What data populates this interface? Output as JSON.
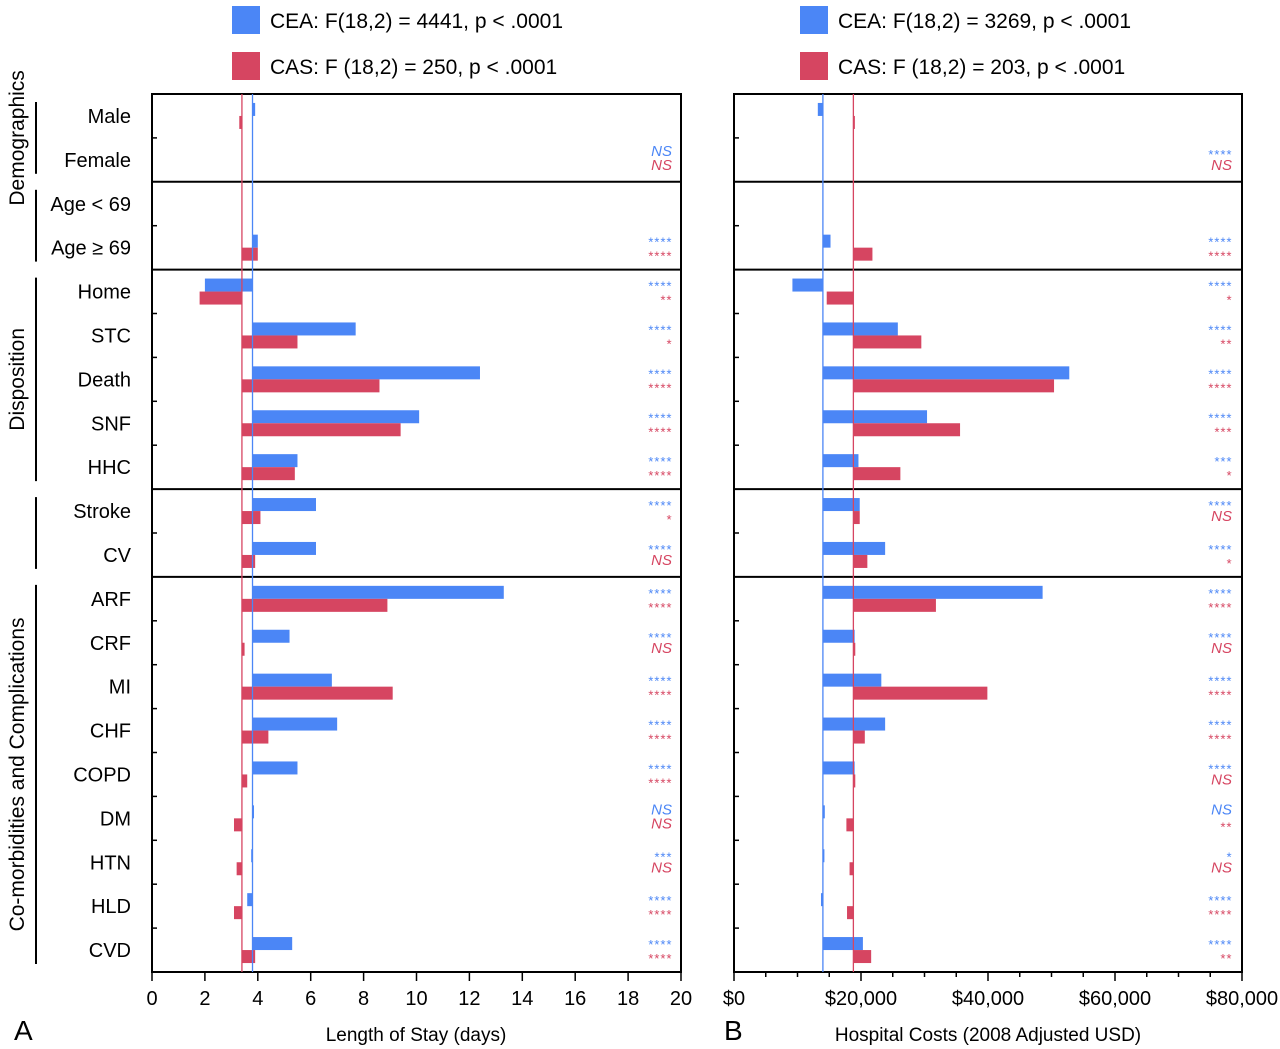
{
  "chart_data": [
    {
      "type": "bar",
      "orientation": "horizontal",
      "panel_label": "A",
      "xlabel": "Length of Stay (days)",
      "xlim": [
        0,
        20
      ],
      "xticks": [
        "0",
        "2",
        "4",
        "6",
        "8",
        "10",
        "12",
        "14",
        "16",
        "18",
        "20"
      ],
      "reference_lines": [
        {
          "series": "CEA",
          "x": 3.8
        },
        {
          "series": "CAS",
          "x": 3.4
        }
      ],
      "legend_position": "top",
      "groups": [
        {
          "label": "Demographics",
          "categories": [
            "Male",
            "Female"
          ]
        },
        {
          "label": "",
          "categories": [
            "Age < 69",
            "Age ≥ 69"
          ]
        },
        {
          "label": "Disposition",
          "categories": [
            "Home",
            "STC",
            "Death",
            "SNF",
            "HHC"
          ]
        },
        {
          "label": "",
          "categories": [
            "Stroke",
            "CV"
          ]
        },
        {
          "label": "Co-morbidities and Complications",
          "categories": [
            "ARF",
            "CRF",
            "MI",
            "CHF",
            "COPD",
            "DM",
            "HTN",
            "HLD",
            "CVD"
          ]
        }
      ],
      "categories": [
        "Male",
        "Female",
        "Age < 69",
        "Age ≥ 69",
        "Home",
        "STC",
        "Death",
        "SNF",
        "HHC",
        "Stroke",
        "CV",
        "ARF",
        "CRF",
        "MI",
        "CHF",
        "COPD",
        "DM",
        "HTN",
        "HLD",
        "CVD"
      ],
      "series": [
        {
          "name": "CEA",
          "legend": "CEA: F(18,2) = 4441, p < .0001",
          "color": "#4b86f6",
          "values": [
            3.9,
            null,
            null,
            4.0,
            2.0,
            7.7,
            12.4,
            10.1,
            5.5,
            6.2,
            6.2,
            13.3,
            5.2,
            6.8,
            7.0,
            5.5,
            3.85,
            3.75,
            3.6,
            5.3
          ],
          "significance": [
            "",
            "NS",
            "",
            "****",
            "****",
            "****",
            "****",
            "****",
            "****",
            "****",
            "****",
            "****",
            "****",
            "****",
            "****",
            "****",
            "NS",
            "***",
            "****",
            "****"
          ]
        },
        {
          "name": "CAS",
          "legend": "CAS: F (18,2) = 250, p < .0001",
          "color": "#d64561",
          "values": [
            3.3,
            null,
            null,
            4.0,
            1.8,
            5.5,
            8.6,
            9.4,
            5.4,
            4.1,
            3.9,
            8.9,
            3.5,
            9.1,
            4.4,
            3.6,
            3.1,
            3.2,
            3.1,
            3.9
          ],
          "significance": [
            "",
            "NS",
            "",
            "****",
            "**",
            "*",
            "****",
            "****",
            "****",
            "*",
            "NS",
            "****",
            "NS",
            "****",
            "****",
            "****",
            "NS",
            "NS",
            "****",
            "****"
          ]
        }
      ]
    },
    {
      "type": "bar",
      "orientation": "horizontal",
      "panel_label": "B",
      "xlabel": "Hospital Costs (2008 Adjusted USD)",
      "xlim": [
        0,
        80000
      ],
      "xticks": [
        "$0",
        "$20,000",
        "$40,000",
        "$60,000",
        "$80,000"
      ],
      "reference_lines": [
        {
          "series": "CEA",
          "x": 14000
        },
        {
          "series": "CAS",
          "x": 18800
        }
      ],
      "legend_position": "top",
      "categories": [
        "Male",
        "Female",
        "Age < 69",
        "Age ≥ 69",
        "Home",
        "STC",
        "Death",
        "SNF",
        "HHC",
        "Stroke",
        "CV",
        "ARF",
        "CRF",
        "MI",
        "CHF",
        "COPD",
        "DM",
        "HTN",
        "HLD",
        "CVD"
      ],
      "series": [
        {
          "name": "CEA",
          "legend": "CEA: F(18,2) = 3269, p < .0001",
          "color": "#4b86f6",
          "values": [
            13200,
            null,
            null,
            15200,
            9200,
            25800,
            52800,
            30400,
            19600,
            19800,
            23800,
            48600,
            19000,
            23200,
            23800,
            19000,
            14300,
            14100,
            13700,
            20300
          ],
          "significance": [
            "",
            "****",
            "",
            "****",
            "****",
            "****",
            "****",
            "****",
            "***",
            "****",
            "****",
            "****",
            "****",
            "****",
            "****",
            "****",
            "NS",
            "*",
            "****",
            "****"
          ]
        },
        {
          "name": "CAS",
          "legend": "CAS: F (18,2) = 203, p < .0001",
          "color": "#d64561",
          "values": [
            19000,
            null,
            null,
            21800,
            14600,
            29500,
            50400,
            35600,
            26200,
            19800,
            21000,
            31800,
            19100,
            39900,
            20600,
            19100,
            17700,
            18200,
            17800,
            21600
          ],
          "significance": [
            "",
            "NS",
            "",
            "****",
            "*",
            "**",
            "****",
            "***",
            "*",
            "NS",
            "*",
            "****",
            "NS",
            "****",
            "****",
            "NS",
            "**",
            "NS",
            "****",
            "**"
          ]
        }
      ]
    }
  ]
}
